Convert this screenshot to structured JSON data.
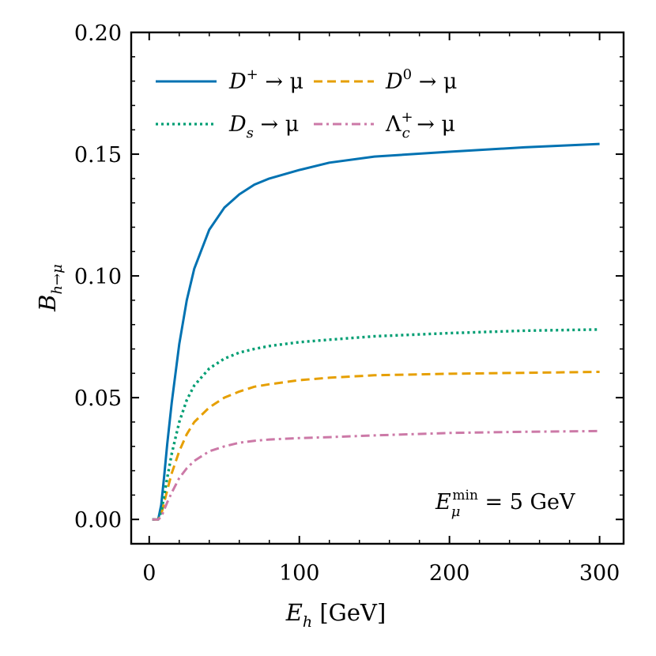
{
  "chart_data": {
    "type": "line",
    "xlabel_main": "E",
    "xlabel_sub": "h",
    "xlabel_unit": " [GeV]",
    "ylabel_main": "B",
    "ylabel_sub": "h→μ",
    "xlim": [
      -12,
      316
    ],
    "ylim": [
      -0.01,
      0.2
    ],
    "xticks": [
      0,
      100,
      200,
      300
    ],
    "xtick_labels": [
      "0",
      "100",
      "200",
      "300"
    ],
    "yticks": [
      0.0,
      0.05,
      0.1,
      0.15,
      0.2
    ],
    "ytick_labels": [
      "0.00",
      "0.05",
      "0.10",
      "0.15",
      "0.20"
    ],
    "annotation": {
      "main": "E",
      "sub": "μ",
      "sup": "min",
      "rest": " = 5 GeV"
    },
    "legend_position": "top-left",
    "series": [
      {
        "name": "D⁺ → μ",
        "label_main": "D",
        "label_sup": "+",
        "label_sub": "",
        "label_rest": " → μ",
        "color": "#0072b2",
        "style": "solid",
        "x": [
          2,
          6,
          8,
          10,
          12,
          15,
          20,
          25,
          30,
          40,
          50,
          60,
          70,
          80,
          100,
          120,
          150,
          200,
          250,
          300
        ],
        "y": [
          0,
          0,
          0.006,
          0.018,
          0.031,
          0.048,
          0.072,
          0.09,
          0.103,
          0.119,
          0.128,
          0.1335,
          0.1375,
          0.14,
          0.1435,
          0.1465,
          0.149,
          0.151,
          0.1528,
          0.1542
        ]
      },
      {
        "name": "D⁰ → μ",
        "label_main": "D",
        "label_sup": "0",
        "label_sub": "",
        "label_rest": " → μ",
        "color": "#e69f00",
        "style": "dashed",
        "x": [
          2,
          6,
          8,
          10,
          12,
          15,
          20,
          25,
          30,
          40,
          50,
          60,
          70,
          80,
          100,
          120,
          150,
          200,
          250,
          300
        ],
        "y": [
          0,
          0,
          0.002,
          0.007,
          0.012,
          0.019,
          0.028,
          0.035,
          0.04,
          0.046,
          0.05,
          0.0525,
          0.0545,
          0.0555,
          0.0572,
          0.0582,
          0.0592,
          0.0598,
          0.0602,
          0.0606
        ]
      },
      {
        "name": "Ds → μ",
        "label_main": "D",
        "label_sup": "",
        "label_sub": "s",
        "label_rest": " → μ",
        "color": "#009e73",
        "style": "dotted",
        "x": [
          2,
          6,
          8,
          10,
          12,
          15,
          20,
          25,
          30,
          40,
          50,
          60,
          70,
          80,
          100,
          120,
          150,
          200,
          250,
          300
        ],
        "y": [
          0,
          0,
          0.003,
          0.01,
          0.017,
          0.027,
          0.04,
          0.049,
          0.055,
          0.062,
          0.066,
          0.0685,
          0.07,
          0.0712,
          0.0728,
          0.0738,
          0.0752,
          0.0765,
          0.0775,
          0.078
        ]
      },
      {
        "name": "Λc⁺ → μ",
        "label_main": "Λ",
        "label_sup": "+",
        "label_sub": "c",
        "label_rest": " → μ",
        "color": "#cc79a7",
        "style": "dashdot",
        "x": [
          2,
          6,
          8,
          10,
          12,
          15,
          20,
          25,
          30,
          40,
          50,
          60,
          70,
          80,
          100,
          120,
          150,
          200,
          250,
          300
        ],
        "y": [
          0,
          0,
          0.001,
          0.004,
          0.007,
          0.011,
          0.017,
          0.021,
          0.024,
          0.028,
          0.03,
          0.0315,
          0.0323,
          0.0328,
          0.0334,
          0.0338,
          0.0345,
          0.0355,
          0.036,
          0.0363
        ]
      }
    ]
  }
}
